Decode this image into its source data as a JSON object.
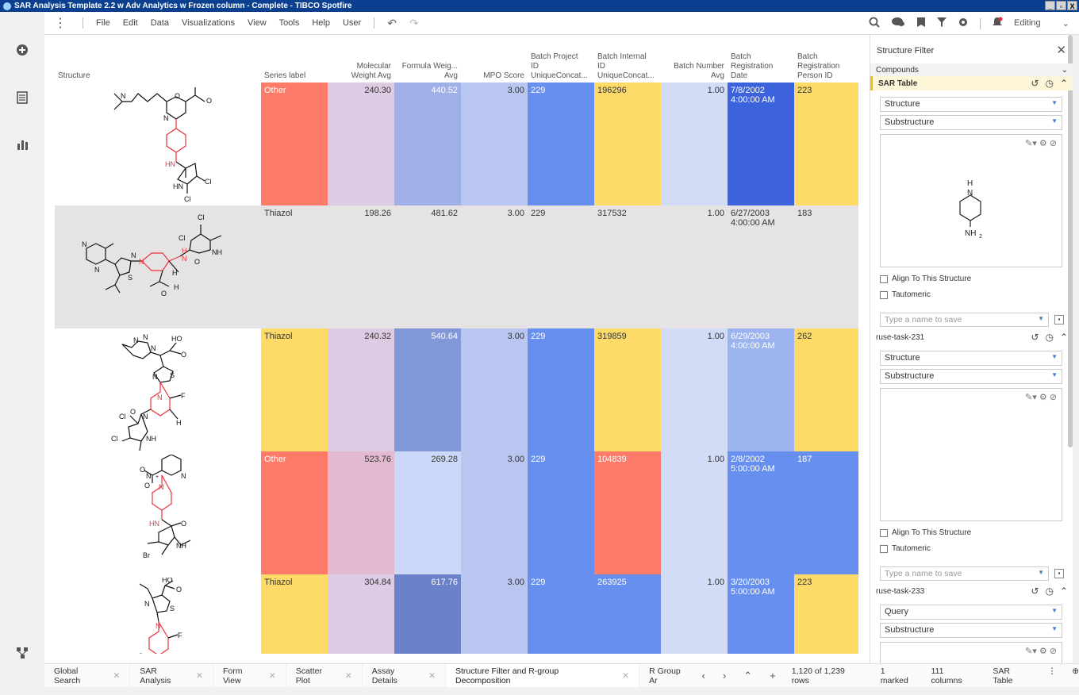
{
  "window": {
    "title": "SAR Analysis Template 2.2 w Adv Analytics w Frozen column - Complete - TIBCO Spotfire",
    "controls": [
      "_",
      "▫",
      "X"
    ]
  },
  "menu": {
    "items": [
      "File",
      "Edit",
      "Data",
      "Visualizations",
      "View",
      "Tools",
      "Help",
      "User"
    ],
    "mode": "Editing"
  },
  "table": {
    "headers": {
      "structure": "Structure",
      "series": "Series label",
      "mw": [
        "Molecular",
        "Weight  Avg"
      ],
      "fw": [
        "Formula Weig...",
        "Avg"
      ],
      "mpo": "MPO Score",
      "proj": [
        "Batch Project",
        "ID",
        "UniqueConcat..."
      ],
      "internal": [
        "Batch Internal",
        "ID",
        "UniqueConcat..."
      ],
      "batchnum": [
        "Batch Number",
        "Avg"
      ],
      "regdate": [
        "Batch",
        "Registration",
        "Date"
      ],
      "person": [
        "Batch",
        "Registration",
        "Person ID"
      ]
    },
    "rows": [
      {
        "series": "Other",
        "mw": "240.30",
        "fw": "440.52",
        "mpo": "3.00",
        "proj": "229",
        "internal": "196296",
        "batchnum": "1.00",
        "date": "7/8/2002",
        "time": "4:00:00 AM",
        "person": "223"
      },
      {
        "series": "Thiazol",
        "mw": "198.26",
        "fw": "481.62",
        "mpo": "3.00",
        "proj": "229",
        "internal": "317532",
        "batchnum": "1.00",
        "date": "6/27/2003",
        "time": "4:00:00 AM",
        "person": "183"
      },
      {
        "series": "Thiazol",
        "mw": "240.32",
        "fw": "540.64",
        "mpo": "3.00",
        "proj": "229",
        "internal": "319859",
        "batchnum": "1.00",
        "date": "6/29/2003",
        "time": "4:00:00 AM",
        "person": "262"
      },
      {
        "series": "Other",
        "mw": "523.76",
        "fw": "269.28",
        "mpo": "3.00",
        "proj": "229",
        "internal": "104839",
        "batchnum": "1.00",
        "date": "2/8/2002",
        "time": "5:00:00 AM",
        "person": "187"
      },
      {
        "series": "Thiazol",
        "mw": "304.84",
        "fw": "617.76",
        "mpo": "3.00",
        "proj": "229",
        "internal": "263925",
        "batchnum": "1.00",
        "date": "3/20/2003",
        "time": "5:00:00 AM",
        "person": "223"
      }
    ],
    "colors": {
      "series": [
        "#fe7a69",
        null,
        "#fedb69",
        "#fe7a69",
        "#fedb69"
      ],
      "mw": [
        "#dccbe2",
        null,
        "#dccbe2",
        "#e2b9cf",
        "#dccbe2"
      ],
      "fw": [
        "#9fb0e6",
        null,
        "#8197d8",
        "#ccd8f8",
        "#6b82cb"
      ],
      "mpo": [
        "#b9c6f0",
        null,
        "#b9c6f0",
        "#b9c6f0",
        "#b9c6f0"
      ],
      "proj": [
        "#668ff0",
        null,
        "#668ff0",
        "#668ff0",
        "#668ff0"
      ],
      "internal": [
        "#fedb69",
        null,
        "#fedb69",
        "#fe7a69",
        "#668ff0"
      ],
      "batchnum": [
        "#d3dcf7",
        null,
        "#d3dcf7",
        "#d3dcf7",
        "#d3dcf7"
      ],
      "date": [
        "#3c63dc",
        null,
        "#9bb3ef",
        "#668ff0",
        "#668ff0"
      ],
      "person": [
        "#fedb69",
        null,
        "#fedb69",
        "#668ff0",
        "#fedb69"
      ]
    }
  },
  "structure_filter": {
    "title": "Structure Filter",
    "compounds_label": "Compounds",
    "groups": [
      {
        "name": "SAR Table",
        "field": "Structure",
        "mode": "Substructure",
        "align_label": "Align To This Structure",
        "tautomeric_label": "Tautomeric",
        "save_placeholder": "Type a name to save"
      },
      {
        "name": "ruse-task-231",
        "field": "Structure",
        "mode": "Substructure",
        "align_label": "Align To This Structure",
        "tautomeric_label": "Tautomeric",
        "save_placeholder": "Type a name to save"
      },
      {
        "name": "ruse-task-233",
        "field": "Query",
        "mode": "Substructure"
      }
    ],
    "sketch": {
      "atom_top": "H",
      "atom_n": "N",
      "atom_bottom": "NH",
      "subscript": "2"
    }
  },
  "bottom": {
    "tabs": [
      "Global Search",
      "SAR Analysis",
      "Form View",
      "Scatter Plot",
      "Assay Details",
      "Structure Filter and R-group Decomposition",
      "R Group Ar"
    ],
    "active_tab": 5,
    "rows": "1,120 of 1,239 rows",
    "marked": "1 marked",
    "columns": "111 columns",
    "table": "SAR Table"
  }
}
